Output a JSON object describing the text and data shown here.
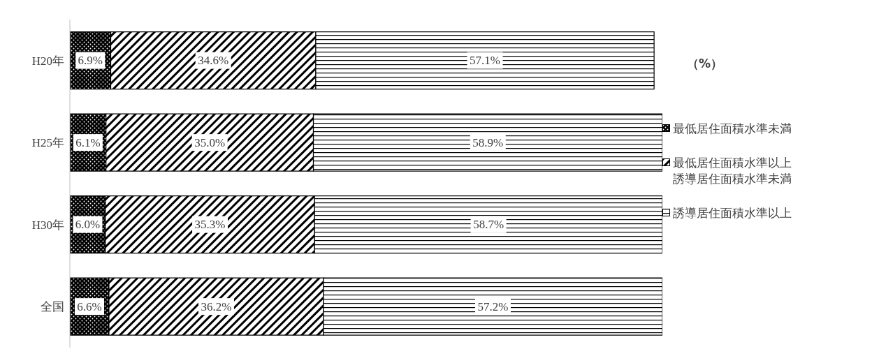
{
  "chart_data": {
    "type": "bar",
    "orientation": "horizontal",
    "stacked": true,
    "legend": "right",
    "categories": [
      "H20年",
      "H25年",
      "H30年",
      "全国"
    ],
    "series": [
      {
        "name": "最低居住面積水準未満",
        "color": "#000000",
        "values": [
          6.9,
          6.1,
          6.0,
          6.6
        ],
        "value_labels": [
          "6.9%",
          "6.1%",
          "6.0%",
          "6.6%"
        ]
      },
      {
        "name": "最低居住面積水準以上誘導居住面積水準未満",
        "color": "#000000",
        "values": [
          34.6,
          35.0,
          35.3,
          36.2
        ],
        "value_labels": [
          "34.6%",
          "35.0%",
          "35.3%",
          "36.2%"
        ]
      },
      {
        "name": "誘導居住面積水準以上",
        "color": "#000000",
        "values": [
          57.1,
          58.9,
          58.7,
          57.2
        ],
        "value_labels": [
          "57.1%",
          "58.9%",
          "58.7%",
          "57.2%"
        ]
      }
    ],
    "annotations": [
      "（%）"
    ]
  }
}
